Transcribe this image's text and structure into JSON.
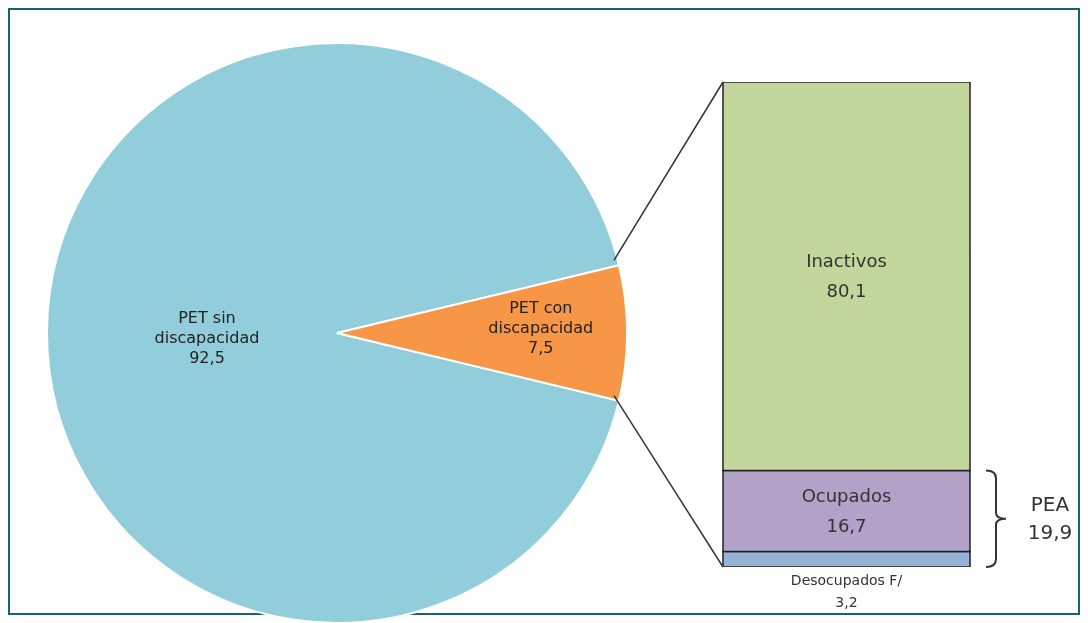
{
  "chart_data": [
    {
      "type": "pie",
      "categories": [
        "PET sin discapacidad",
        "PET con discapacidad"
      ],
      "values": [
        92.5,
        7.5
      ],
      "colors": [
        "#92cddc",
        "#f79646"
      ],
      "value_labels": [
        "92,5",
        "7,5"
      ]
    },
    {
      "type": "bar",
      "stacked": true,
      "categories": [
        null
      ],
      "series": [
        {
          "name": "Desocupados F/",
          "color": "#95b3d7",
          "values": [
            3.2
          ],
          "value_labels": [
            "3,2"
          ]
        },
        {
          "name": "Ocupados",
          "color": "#b3a2c7",
          "values": [
            16.7
          ],
          "value_labels": [
            "16,7"
          ]
        },
        {
          "name": "Inactivos",
          "color": "#c3d69b",
          "values": [
            80.1
          ],
          "value_labels": [
            "80,1"
          ]
        }
      ],
      "annotations": [
        "PEA 19,9"
      ]
    }
  ]
}
